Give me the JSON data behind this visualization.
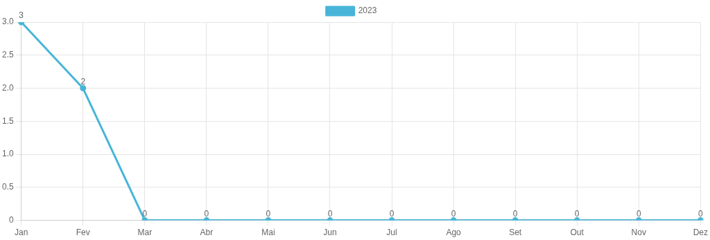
{
  "chart_data": {
    "type": "line",
    "categories": [
      "Jan",
      "Fev",
      "Mar",
      "Abr",
      "Mai",
      "Jun",
      "Jul",
      "Ago",
      "Set",
      "Out",
      "Nov",
      "Dez"
    ],
    "series": [
      {
        "name": "2023",
        "color": "#48b5d8",
        "values": [
          3,
          2,
          0,
          0,
          0,
          0,
          0,
          0,
          0,
          0,
          0,
          0
        ]
      }
    ],
    "ylim": [
      0,
      3
    ],
    "yticks": [
      0,
      0.5,
      {
        "value": 1,
        "label": "1.0"
      },
      1.5,
      {
        "value": 2,
        "label": "2.0"
      },
      2.5,
      {
        "value": 3,
        "label": "3.0"
      }
    ],
    "grid": true,
    "legend": "top",
    "data_labels": true,
    "marker": "circle",
    "line_style": "solid"
  }
}
